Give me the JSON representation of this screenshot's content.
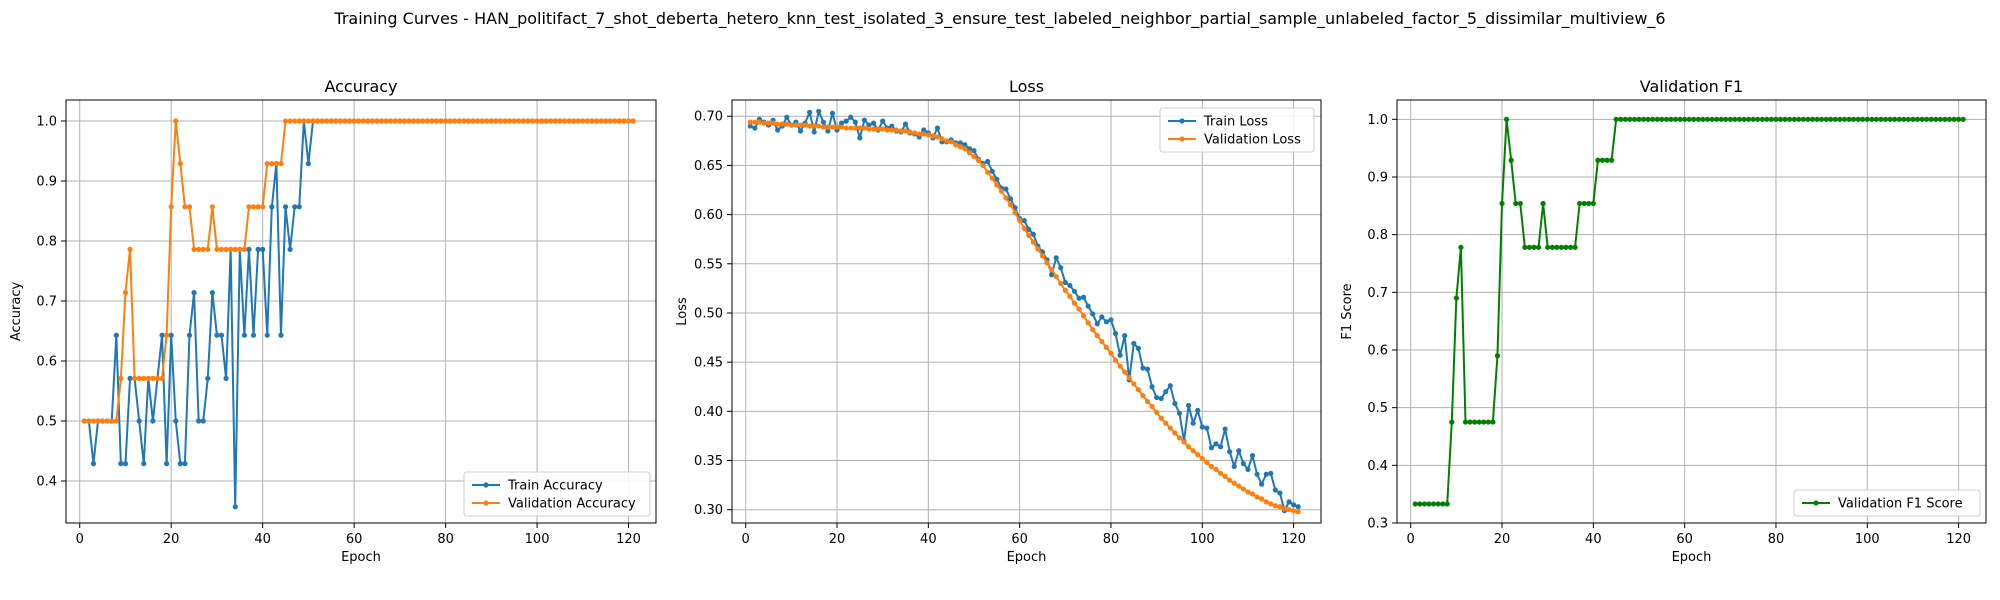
{
  "figure_title": "Training Curves - HAN_politifact_7_shot_deberta_hetero_knn_test_isolated_3_ensure_test_labeled_neighbor_partial_sample_unlabeled_factor_5_dissimilar_multiview_6",
  "colors": {
    "blue": "#1f77b4",
    "orange": "#ff7f0e",
    "green": "#008000",
    "grid": "#b0b0b0"
  },
  "chart_data": [
    {
      "type": "line",
      "title": "Accuracy",
      "xlabel": "Epoch",
      "ylabel": "Accuracy",
      "xlim": [
        -3,
        126
      ],
      "ylim": [
        0.33,
        1.035
      ],
      "xticks": [
        0,
        20,
        40,
        60,
        80,
        100,
        120
      ],
      "yticks": [
        0.4,
        0.5,
        0.6,
        0.7,
        0.8,
        0.9,
        1.0
      ],
      "grid": true,
      "legend_position": "lower-right",
      "series": [
        {
          "name": "Train Accuracy",
          "color": "#1f77b4",
          "x_start": 1,
          "values": [
            0.5,
            0.5,
            0.429,
            0.5,
            0.5,
            0.5,
            0.5,
            0.643,
            0.429,
            0.429,
            0.571,
            0.571,
            0.5,
            0.429,
            0.571,
            0.5,
            0.571,
            0.643,
            0.429,
            0.643,
            0.5,
            0.429,
            0.429,
            0.643,
            0.714,
            0.5,
            0.5,
            0.571,
            0.714,
            0.643,
            0.643,
            0.571,
            0.786,
            0.357,
            0.786,
            0.643,
            0.786,
            0.643,
            0.786,
            0.786,
            0.643,
            0.857,
            0.929,
            0.643,
            0.857,
            0.786,
            0.857,
            0.857,
            1.0,
            0.929,
            1.0,
            1.0,
            1.0,
            1.0,
            1.0,
            1.0,
            1.0,
            1.0,
            1.0,
            1.0,
            1.0,
            1.0,
            1.0,
            1.0,
            1.0,
            1.0,
            1.0,
            1.0,
            1.0,
            1.0,
            1.0,
            1.0,
            1.0,
            1.0,
            1.0,
            1.0,
            1.0,
            1.0,
            1.0,
            1.0,
            1.0,
            1.0,
            1.0,
            1.0,
            1.0,
            1.0,
            1.0,
            1.0,
            1.0,
            1.0,
            1.0,
            1.0,
            1.0,
            1.0,
            1.0,
            1.0,
            1.0,
            1.0,
            1.0,
            1.0,
            1.0,
            1.0,
            1.0,
            1.0,
            1.0,
            1.0,
            1.0,
            1.0,
            1.0,
            1.0,
            1.0,
            1.0,
            1.0,
            1.0,
            1.0,
            1.0,
            1.0,
            1.0,
            1.0,
            1.0,
            1.0
          ]
        },
        {
          "name": "Validation Accuracy",
          "color": "#ff7f0e",
          "x_start": 1,
          "values": [
            0.5,
            0.5,
            0.5,
            0.5,
            0.5,
            0.5,
            0.5,
            0.5,
            0.571,
            0.714,
            0.786,
            0.571,
            0.571,
            0.571,
            0.571,
            0.571,
            0.571,
            0.571,
            0.643,
            0.857,
            1.0,
            0.929,
            0.857,
            0.857,
            0.786,
            0.786,
            0.786,
            0.786,
            0.857,
            0.786,
            0.786,
            0.786,
            0.786,
            0.786,
            0.786,
            0.786,
            0.857,
            0.857,
            0.857,
            0.857,
            0.929,
            0.929,
            0.929,
            0.929,
            1.0,
            1.0,
            1.0,
            1.0,
            1.0,
            1.0,
            1.0,
            1.0,
            1.0,
            1.0,
            1.0,
            1.0,
            1.0,
            1.0,
            1.0,
            1.0,
            1.0,
            1.0,
            1.0,
            1.0,
            1.0,
            1.0,
            1.0,
            1.0,
            1.0,
            1.0,
            1.0,
            1.0,
            1.0,
            1.0,
            1.0,
            1.0,
            1.0,
            1.0,
            1.0,
            1.0,
            1.0,
            1.0,
            1.0,
            1.0,
            1.0,
            1.0,
            1.0,
            1.0,
            1.0,
            1.0,
            1.0,
            1.0,
            1.0,
            1.0,
            1.0,
            1.0,
            1.0,
            1.0,
            1.0,
            1.0,
            1.0,
            1.0,
            1.0,
            1.0,
            1.0,
            1.0,
            1.0,
            1.0,
            1.0,
            1.0,
            1.0,
            1.0,
            1.0,
            1.0,
            1.0,
            1.0,
            1.0,
            1.0,
            1.0,
            1.0,
            1.0
          ]
        }
      ]
    },
    {
      "type": "line",
      "title": "Loss",
      "xlabel": "Epoch",
      "ylabel": "Loss",
      "xlim": [
        -3,
        126
      ],
      "ylim": [
        0.2865,
        0.7165
      ],
      "xticks": [
        0,
        20,
        40,
        60,
        80,
        100,
        120
      ],
      "yticks": [
        0.3,
        0.35,
        0.4,
        0.45,
        0.5,
        0.55,
        0.6,
        0.65,
        0.7
      ],
      "grid": true,
      "legend_position": "upper-right",
      "series": [
        {
          "name": "Train Loss",
          "color": "#1f77b4",
          "x_start": 1,
          "values": [
            0.69,
            0.688,
            0.697,
            0.694,
            0.691,
            0.696,
            0.686,
            0.69,
            0.699,
            0.691,
            0.694,
            0.685,
            0.693,
            0.704,
            0.684,
            0.705,
            0.694,
            0.685,
            0.703,
            0.686,
            0.693,
            0.695,
            0.699,
            0.694,
            0.678,
            0.696,
            0.691,
            0.693,
            0.686,
            0.695,
            0.688,
            0.69,
            0.685,
            0.684,
            0.692,
            0.683,
            0.682,
            0.679,
            0.686,
            0.683,
            0.678,
            0.688,
            0.674,
            0.674,
            0.676,
            0.673,
            0.673,
            0.671,
            0.667,
            0.665,
            0.656,
            0.652,
            0.654,
            0.644,
            0.636,
            0.627,
            0.626,
            0.616,
            0.607,
            0.596,
            0.594,
            0.585,
            0.58,
            0.568,
            0.562,
            0.554,
            0.539,
            0.556,
            0.546,
            0.531,
            0.528,
            0.522,
            0.515,
            0.516,
            0.507,
            0.499,
            0.489,
            0.496,
            0.491,
            0.493,
            0.479,
            0.457,
            0.477,
            0.432,
            0.469,
            0.464,
            0.444,
            0.443,
            0.425,
            0.414,
            0.413,
            0.42,
            0.426,
            0.408,
            0.398,
            0.37,
            0.406,
            0.388,
            0.401,
            0.384,
            0.383,
            0.363,
            0.367,
            0.364,
            0.382,
            0.359,
            0.344,
            0.36,
            0.347,
            0.341,
            0.355,
            0.336,
            0.326,
            0.336,
            0.337,
            0.32,
            0.317,
            0.299,
            0.308,
            0.305,
            0.303
          ]
        },
        {
          "name": "Validation Loss",
          "color": "#ff7f0e",
          "x_start": 1,
          "values": [
            0.694,
            0.694,
            0.694,
            0.693,
            0.693,
            0.693,
            0.692,
            0.692,
            0.692,
            0.691,
            0.691,
            0.691,
            0.691,
            0.69,
            0.69,
            0.69,
            0.689,
            0.689,
            0.689,
            0.689,
            0.689,
            0.688,
            0.688,
            0.688,
            0.688,
            0.688,
            0.687,
            0.687,
            0.687,
            0.687,
            0.686,
            0.686,
            0.686,
            0.685,
            0.685,
            0.684,
            0.683,
            0.682,
            0.682,
            0.681,
            0.68,
            0.679,
            0.677,
            0.675,
            0.674,
            0.671,
            0.669,
            0.667,
            0.663,
            0.659,
            0.655,
            0.65,
            0.643,
            0.637,
            0.63,
            0.624,
            0.617,
            0.61,
            0.602,
            0.594,
            0.586,
            0.579,
            0.572,
            0.565,
            0.558,
            0.551,
            0.544,
            0.537,
            0.53,
            0.523,
            0.517,
            0.51,
            0.504,
            0.497,
            0.49,
            0.483,
            0.477,
            0.471,
            0.465,
            0.459,
            0.452,
            0.446,
            0.44,
            0.434,
            0.428,
            0.422,
            0.416,
            0.41,
            0.405,
            0.399,
            0.393,
            0.388,
            0.383,
            0.378,
            0.373,
            0.369,
            0.364,
            0.36,
            0.356,
            0.352,
            0.348,
            0.344,
            0.341,
            0.337,
            0.334,
            0.33,
            0.327,
            0.324,
            0.321,
            0.318,
            0.316,
            0.313,
            0.311,
            0.308,
            0.306,
            0.304,
            0.303,
            0.301,
            0.3,
            0.299,
            0.298
          ]
        }
      ]
    },
    {
      "type": "line",
      "title": "Validation F1",
      "xlabel": "Epoch",
      "ylabel": "F1 Score",
      "xlim": [
        -3,
        126
      ],
      "ylim": [
        0.3,
        1.0335
      ],
      "xticks": [
        0,
        20,
        40,
        60,
        80,
        100,
        120
      ],
      "yticks": [
        0.3,
        0.4,
        0.5,
        0.6,
        0.7,
        0.8,
        0.9,
        1.0
      ],
      "grid": true,
      "legend_position": "lower-right",
      "series": [
        {
          "name": "Validation F1 Score",
          "color": "#008000",
          "x_start": 1,
          "values": [
            0.333,
            0.333,
            0.333,
            0.333,
            0.333,
            0.333,
            0.333,
            0.333,
            0.475,
            0.69,
            0.778,
            0.475,
            0.475,
            0.475,
            0.475,
            0.475,
            0.475,
            0.475,
            0.59,
            0.854,
            1.0,
            0.929,
            0.854,
            0.854,
            0.778,
            0.778,
            0.778,
            0.778,
            0.854,
            0.778,
            0.778,
            0.778,
            0.778,
            0.778,
            0.778,
            0.778,
            0.854,
            0.854,
            0.854,
            0.854,
            0.929,
            0.929,
            0.929,
            0.929,
            1.0,
            1.0,
            1.0,
            1.0,
            1.0,
            1.0,
            1.0,
            1.0,
            1.0,
            1.0,
            1.0,
            1.0,
            1.0,
            1.0,
            1.0,
            1.0,
            1.0,
            1.0,
            1.0,
            1.0,
            1.0,
            1.0,
            1.0,
            1.0,
            1.0,
            1.0,
            1.0,
            1.0,
            1.0,
            1.0,
            1.0,
            1.0,
            1.0,
            1.0,
            1.0,
            1.0,
            1.0,
            1.0,
            1.0,
            1.0,
            1.0,
            1.0,
            1.0,
            1.0,
            1.0,
            1.0,
            1.0,
            1.0,
            1.0,
            1.0,
            1.0,
            1.0,
            1.0,
            1.0,
            1.0,
            1.0,
            1.0,
            1.0,
            1.0,
            1.0,
            1.0,
            1.0,
            1.0,
            1.0,
            1.0,
            1.0,
            1.0,
            1.0,
            1.0,
            1.0,
            1.0,
            1.0,
            1.0,
            1.0,
            1.0,
            1.0,
            1.0
          ]
        }
      ]
    }
  ]
}
